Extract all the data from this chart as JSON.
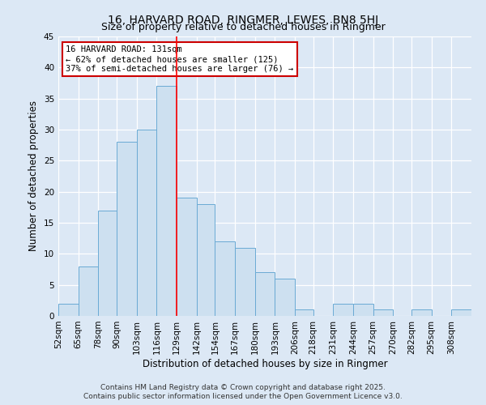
{
  "title": "16, HARVARD ROAD, RINGMER, LEWES, BN8 5HJ",
  "subtitle": "Size of property relative to detached houses in Ringmer",
  "xlabel": "Distribution of detached houses by size in Ringmer",
  "ylabel": "Number of detached properties",
  "bin_labels": [
    "52sqm",
    "65sqm",
    "78sqm",
    "90sqm",
    "103sqm",
    "116sqm",
    "129sqm",
    "142sqm",
    "154sqm",
    "167sqm",
    "180sqm",
    "193sqm",
    "206sqm",
    "218sqm",
    "231sqm",
    "244sqm",
    "257sqm",
    "270sqm",
    "282sqm",
    "295sqm",
    "308sqm"
  ],
  "bin_edges": [
    52,
    65,
    78,
    90,
    103,
    116,
    129,
    142,
    154,
    167,
    180,
    193,
    206,
    218,
    231,
    244,
    257,
    270,
    282,
    295,
    308
  ],
  "bar_heights": [
    2,
    8,
    17,
    28,
    30,
    37,
    19,
    18,
    12,
    11,
    7,
    6,
    1,
    0,
    2,
    2,
    1,
    0,
    1,
    0,
    1
  ],
  "bar_color": "#cde0f0",
  "bar_edgecolor": "#6aaad4",
  "red_line_x": 129,
  "ylim": [
    0,
    45
  ],
  "yticks": [
    0,
    5,
    10,
    15,
    20,
    25,
    30,
    35,
    40,
    45
  ],
  "annotation_title": "16 HARVARD ROAD: 131sqm",
  "annotation_line1": "← 62% of detached houses are smaller (125)",
  "annotation_line2": "37% of semi-detached houses are larger (76) →",
  "annotation_box_color": "#ffffff",
  "annotation_box_edgecolor": "#cc0000",
  "footer_line1": "Contains HM Land Registry data © Crown copyright and database right 2025.",
  "footer_line2": "Contains public sector information licensed under the Open Government Licence v3.0.",
  "background_color": "#dce8f5",
  "plot_background_color": "#dce8f5",
  "title_fontsize": 10,
  "subtitle_fontsize": 9,
  "axis_label_fontsize": 8.5,
  "tick_fontsize": 7.5,
  "footer_fontsize": 6.5
}
